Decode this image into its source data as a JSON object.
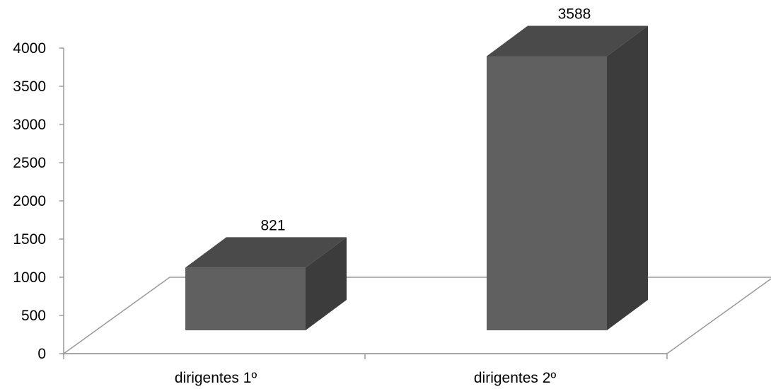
{
  "chart_data": {
    "type": "bar",
    "style": "3d-column",
    "categories": [
      "dirigentes 1º",
      "dirigentes 2º"
    ],
    "series": [
      {
        "values": [
          821,
          3588
        ]
      }
    ],
    "data_labels": [
      "821",
      "3588"
    ],
    "y_ticks": [
      "0",
      "500",
      "1000",
      "1500",
      "2000",
      "2500",
      "3000",
      "3500",
      "4000"
    ],
    "ylim": [
      0,
      4000
    ],
    "grid": false,
    "legend": "none",
    "title": "",
    "xlabel": "",
    "ylabel": ""
  },
  "colors": {
    "bar_front": "#606060",
    "bar_top": "#4a4a4a",
    "bar_side": "#3c3c3c",
    "axis": "#9a9a9a"
  }
}
